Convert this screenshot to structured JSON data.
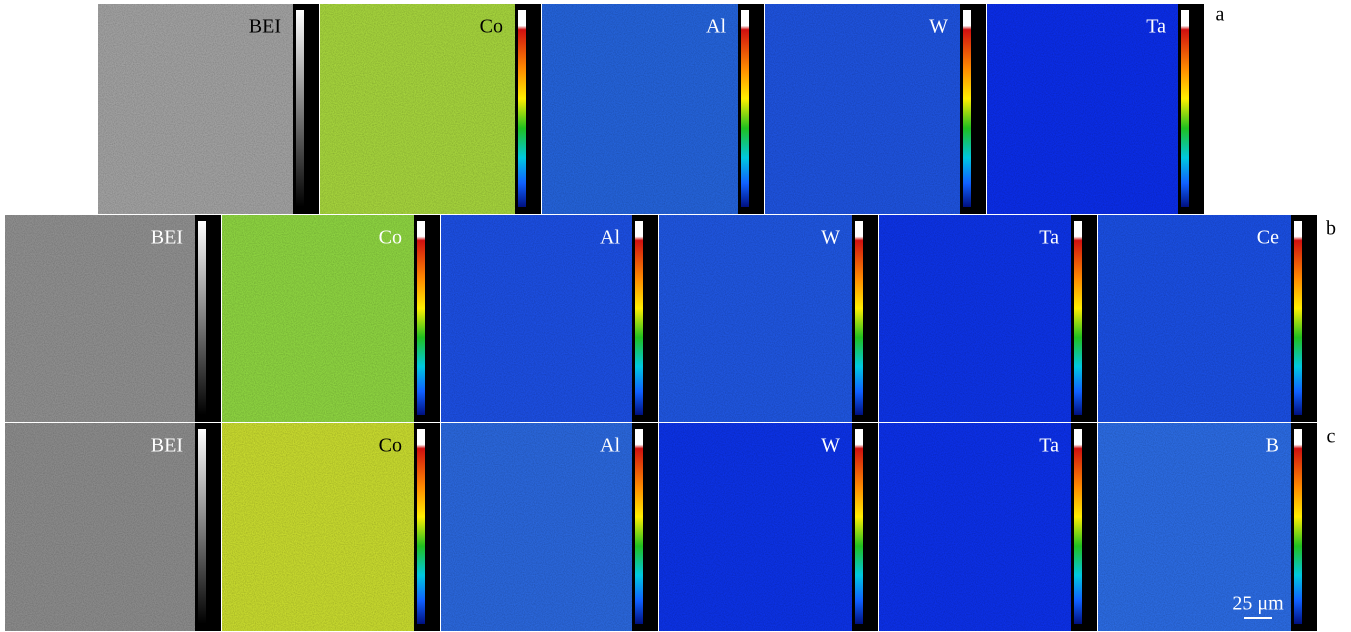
{
  "rows": [
    {
      "label": "a",
      "panels": [
        {
          "label": "BEI",
          "color": "#a0a0a0",
          "label_color": "#000000"
        },
        {
          "label": "Co",
          "color": "#a4d23c",
          "label_color": "#000000"
        },
        {
          "label": "Al",
          "color": "#2462d8",
          "label_color": "#ffffff"
        },
        {
          "label": "W",
          "color": "#1e52dc",
          "label_color": "#ffffff"
        },
        {
          "label": "Ta",
          "color": "#0b2de6",
          "label_color": "#ffffff"
        }
      ]
    },
    {
      "label": "b",
      "panels": [
        {
          "label": "BEI",
          "color": "#8e8e8e",
          "label_color": "#ffffff"
        },
        {
          "label": "Co",
          "color": "#8cd240",
          "label_color": "#ffffff"
        },
        {
          "label": "Al",
          "color": "#1c4ee0",
          "label_color": "#ffffff"
        },
        {
          "label": "W",
          "color": "#1f55de",
          "label_color": "#ffffff"
        },
        {
          "label": "Ta",
          "color": "#0d33e4",
          "label_color": "#ffffff"
        },
        {
          "label": "Ce",
          "color": "#1a4ee0",
          "label_color": "#ffffff"
        }
      ]
    },
    {
      "label": "c",
      "panels": [
        {
          "label": "BEI",
          "color": "#8a8a8a",
          "label_color": "#ffffff"
        },
        {
          "label": "Co",
          "color": "#c6d82e",
          "label_color": "#000000"
        },
        {
          "label": "Al",
          "color": "#2a66da",
          "label_color": "#ffffff"
        },
        {
          "label": "W",
          "color": "#0c32e4",
          "label_color": "#ffffff"
        },
        {
          "label": "Ta",
          "color": "#0c30e6",
          "label_color": "#ffffff"
        },
        {
          "label": "B",
          "color": "#2b6ae0",
          "label_color": "#ffffff"
        }
      ]
    }
  ],
  "scale_bar": "25  μm"
}
